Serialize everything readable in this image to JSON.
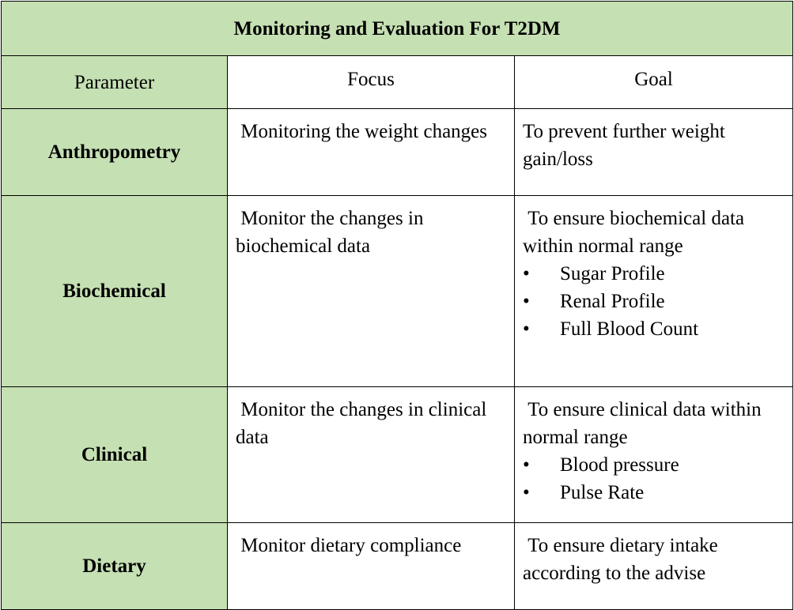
{
  "table": {
    "title": "Monitoring and Evaluation For T2DM",
    "headers": {
      "parameter": "Parameter",
      "focus": "Focus",
      "goal": "Goal"
    },
    "rows": [
      {
        "parameter": "Anthropometry",
        "focus": " Monitoring the weight changes",
        "goal": "To prevent further weight gain/loss",
        "goal_bullets": []
      },
      {
        "parameter": "Biochemical",
        "focus": " Monitor the changes in biochemical data",
        "goal": " To ensure biochemical data within normal range",
        "goal_bullets": [
          "Sugar Profile",
          "Renal Profile",
          "Full Blood Count"
        ]
      },
      {
        "parameter": "Clinical",
        "focus": " Monitor the changes in clinical data",
        "goal": " To ensure clinical data within normal range",
        "goal_bullets": [
          "Blood pressure",
          "Pulse Rate"
        ]
      },
      {
        "parameter": "Dietary",
        "focus": " Monitor dietary compliance",
        "goal": " To ensure dietary intake according to the advise",
        "goal_bullets": []
      }
    ],
    "bullet_glyph": "•",
    "colors": {
      "header_fill": "#c5e0b3",
      "border": "#000000"
    }
  }
}
